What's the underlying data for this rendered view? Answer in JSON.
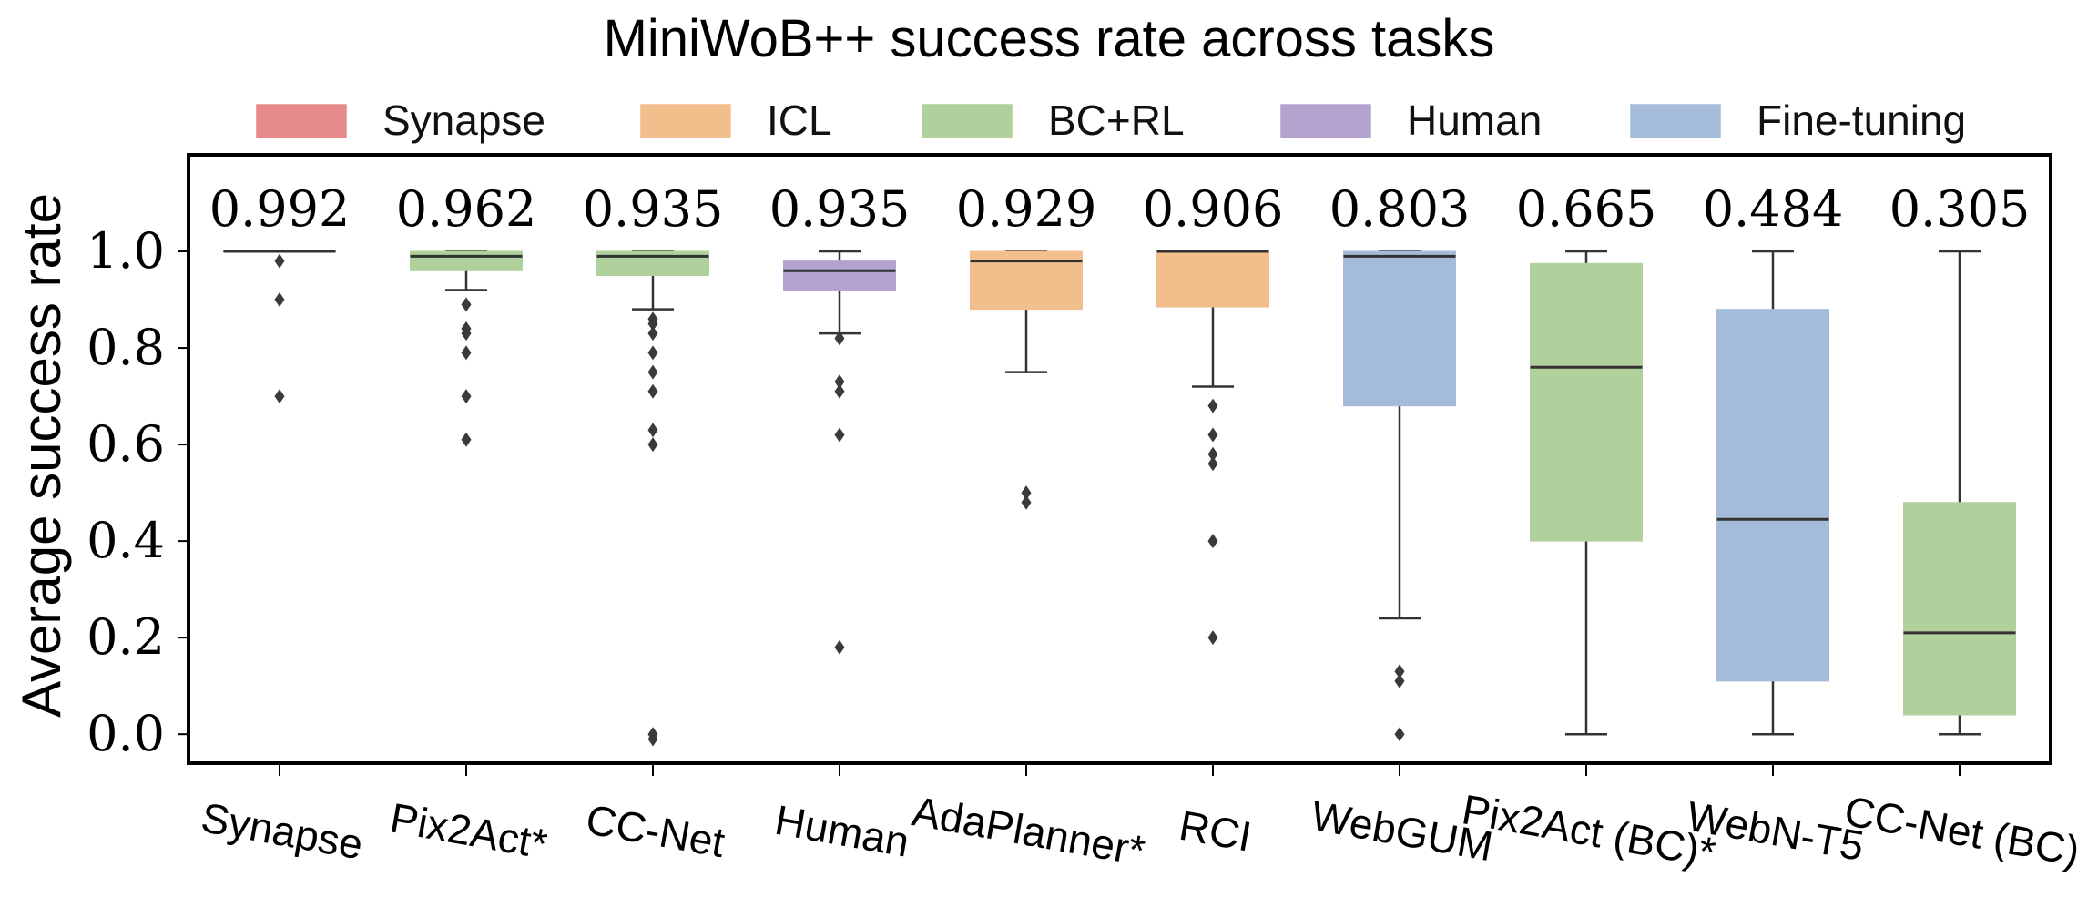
{
  "chart_data": {
    "type": "box",
    "title": "MiniWoB++ success rate across tasks",
    "ylabel": "Average success rate",
    "xlabel": "",
    "ylim": [
      -0.06,
      1.2
    ],
    "yticks": [
      "0.0",
      "0.2",
      "0.4",
      "0.6",
      "0.8",
      "1.0"
    ],
    "legend_position": "top",
    "legend": [
      {
        "name": "Synapse",
        "color": "#e68a8c"
      },
      {
        "name": "ICL",
        "color": "#f2be8c"
      },
      {
        "name": "BC+RL",
        "color": "#b0d09c"
      },
      {
        "name": "Human",
        "color": "#b3a2cd"
      },
      {
        "name": "Fine-tuning",
        "color": "#a4bcd9"
      }
    ],
    "series": [
      {
        "name": "Synapse",
        "group": "Synapse",
        "mean_label": "0.992",
        "q1": 1.0,
        "median": 1.0,
        "q3": 1.0,
        "whisker_low": 1.0,
        "whisker_high": 1.0,
        "outliers": [
          0.98,
          0.9,
          0.7
        ]
      },
      {
        "name": "Pix2Act*",
        "group": "BC+RL",
        "mean_label": "0.962",
        "q1": 0.96,
        "median": 0.99,
        "q3": 1.0,
        "whisker_low": 0.92,
        "whisker_high": 1.0,
        "outliers": [
          0.89,
          0.84,
          0.83,
          0.79,
          0.7,
          0.61
        ]
      },
      {
        "name": "CC-Net",
        "group": "BC+RL",
        "mean_label": "0.935",
        "q1": 0.95,
        "median": 0.99,
        "q3": 1.0,
        "whisker_low": 0.88,
        "whisker_high": 1.0,
        "outliers": [
          0.86,
          0.85,
          0.83,
          0.79,
          0.75,
          0.71,
          0.63,
          0.6,
          0.0,
          -0.01
        ]
      },
      {
        "name": "Human",
        "group": "Human",
        "mean_label": "0.935",
        "q1": 0.92,
        "median": 0.96,
        "q3": 0.98,
        "whisker_low": 0.83,
        "whisker_high": 1.0,
        "outliers": [
          0.82,
          0.73,
          0.71,
          0.62,
          0.18
        ]
      },
      {
        "name": "AdaPlanner*",
        "group": "ICL",
        "mean_label": "0.929",
        "q1": 0.88,
        "median": 0.98,
        "q3": 1.0,
        "whisker_low": 0.75,
        "whisker_high": 1.0,
        "outliers": [
          0.5,
          0.48
        ]
      },
      {
        "name": "RCI",
        "group": "ICL",
        "mean_label": "0.906",
        "q1": 0.885,
        "median": 1.0,
        "q3": 1.0,
        "whisker_low": 0.72,
        "whisker_high": 1.0,
        "outliers": [
          0.68,
          0.62,
          0.58,
          0.56,
          0.4,
          0.2
        ]
      },
      {
        "name": "WebGUM",
        "group": "Fine-tuning",
        "mean_label": "0.803",
        "q1": 0.68,
        "median": 0.99,
        "q3": 1.0,
        "whisker_low": 0.24,
        "whisker_high": 1.0,
        "outliers": [
          0.13,
          0.11,
          0.0
        ]
      },
      {
        "name": "Pix2Act (BC)*",
        "group": "BC+RL",
        "mean_label": "0.665",
        "q1": 0.4,
        "median": 0.76,
        "q3": 0.975,
        "whisker_low": 0.0,
        "whisker_high": 1.0,
        "outliers": []
      },
      {
        "name": "WebN-T5",
        "group": "Fine-tuning",
        "mean_label": "0.484",
        "q1": 0.11,
        "median": 0.445,
        "q3": 0.88,
        "whisker_low": 0.0,
        "whisker_high": 1.0,
        "outliers": []
      },
      {
        "name": "CC-Net (BC)",
        "group": "BC+RL",
        "mean_label": "0.305",
        "q1": 0.04,
        "median": 0.21,
        "q3": 0.48,
        "whisker_low": 0.0,
        "whisker_high": 1.0,
        "outliers": []
      }
    ],
    "box_edge_color": "#333333",
    "outlier_color": "#3a3a3a"
  }
}
